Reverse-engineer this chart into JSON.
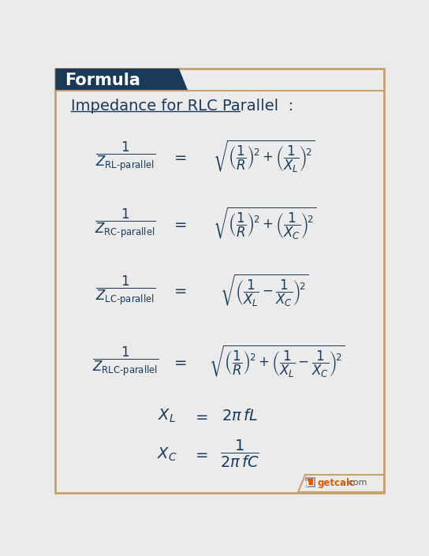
{
  "background_color": "#ebebeb",
  "header_bg_color": "#1a3a5c",
  "header_text": "Formula",
  "header_text_color": "#ffffff",
  "title_text": "Impedance for RLC Parallel  :",
  "title_color": "#1a3a5c",
  "formula_color": "#1a3a5c",
  "border_color": "#c8a06e",
  "figsize": [
    5.44,
    7.05
  ],
  "dpi": 100
}
